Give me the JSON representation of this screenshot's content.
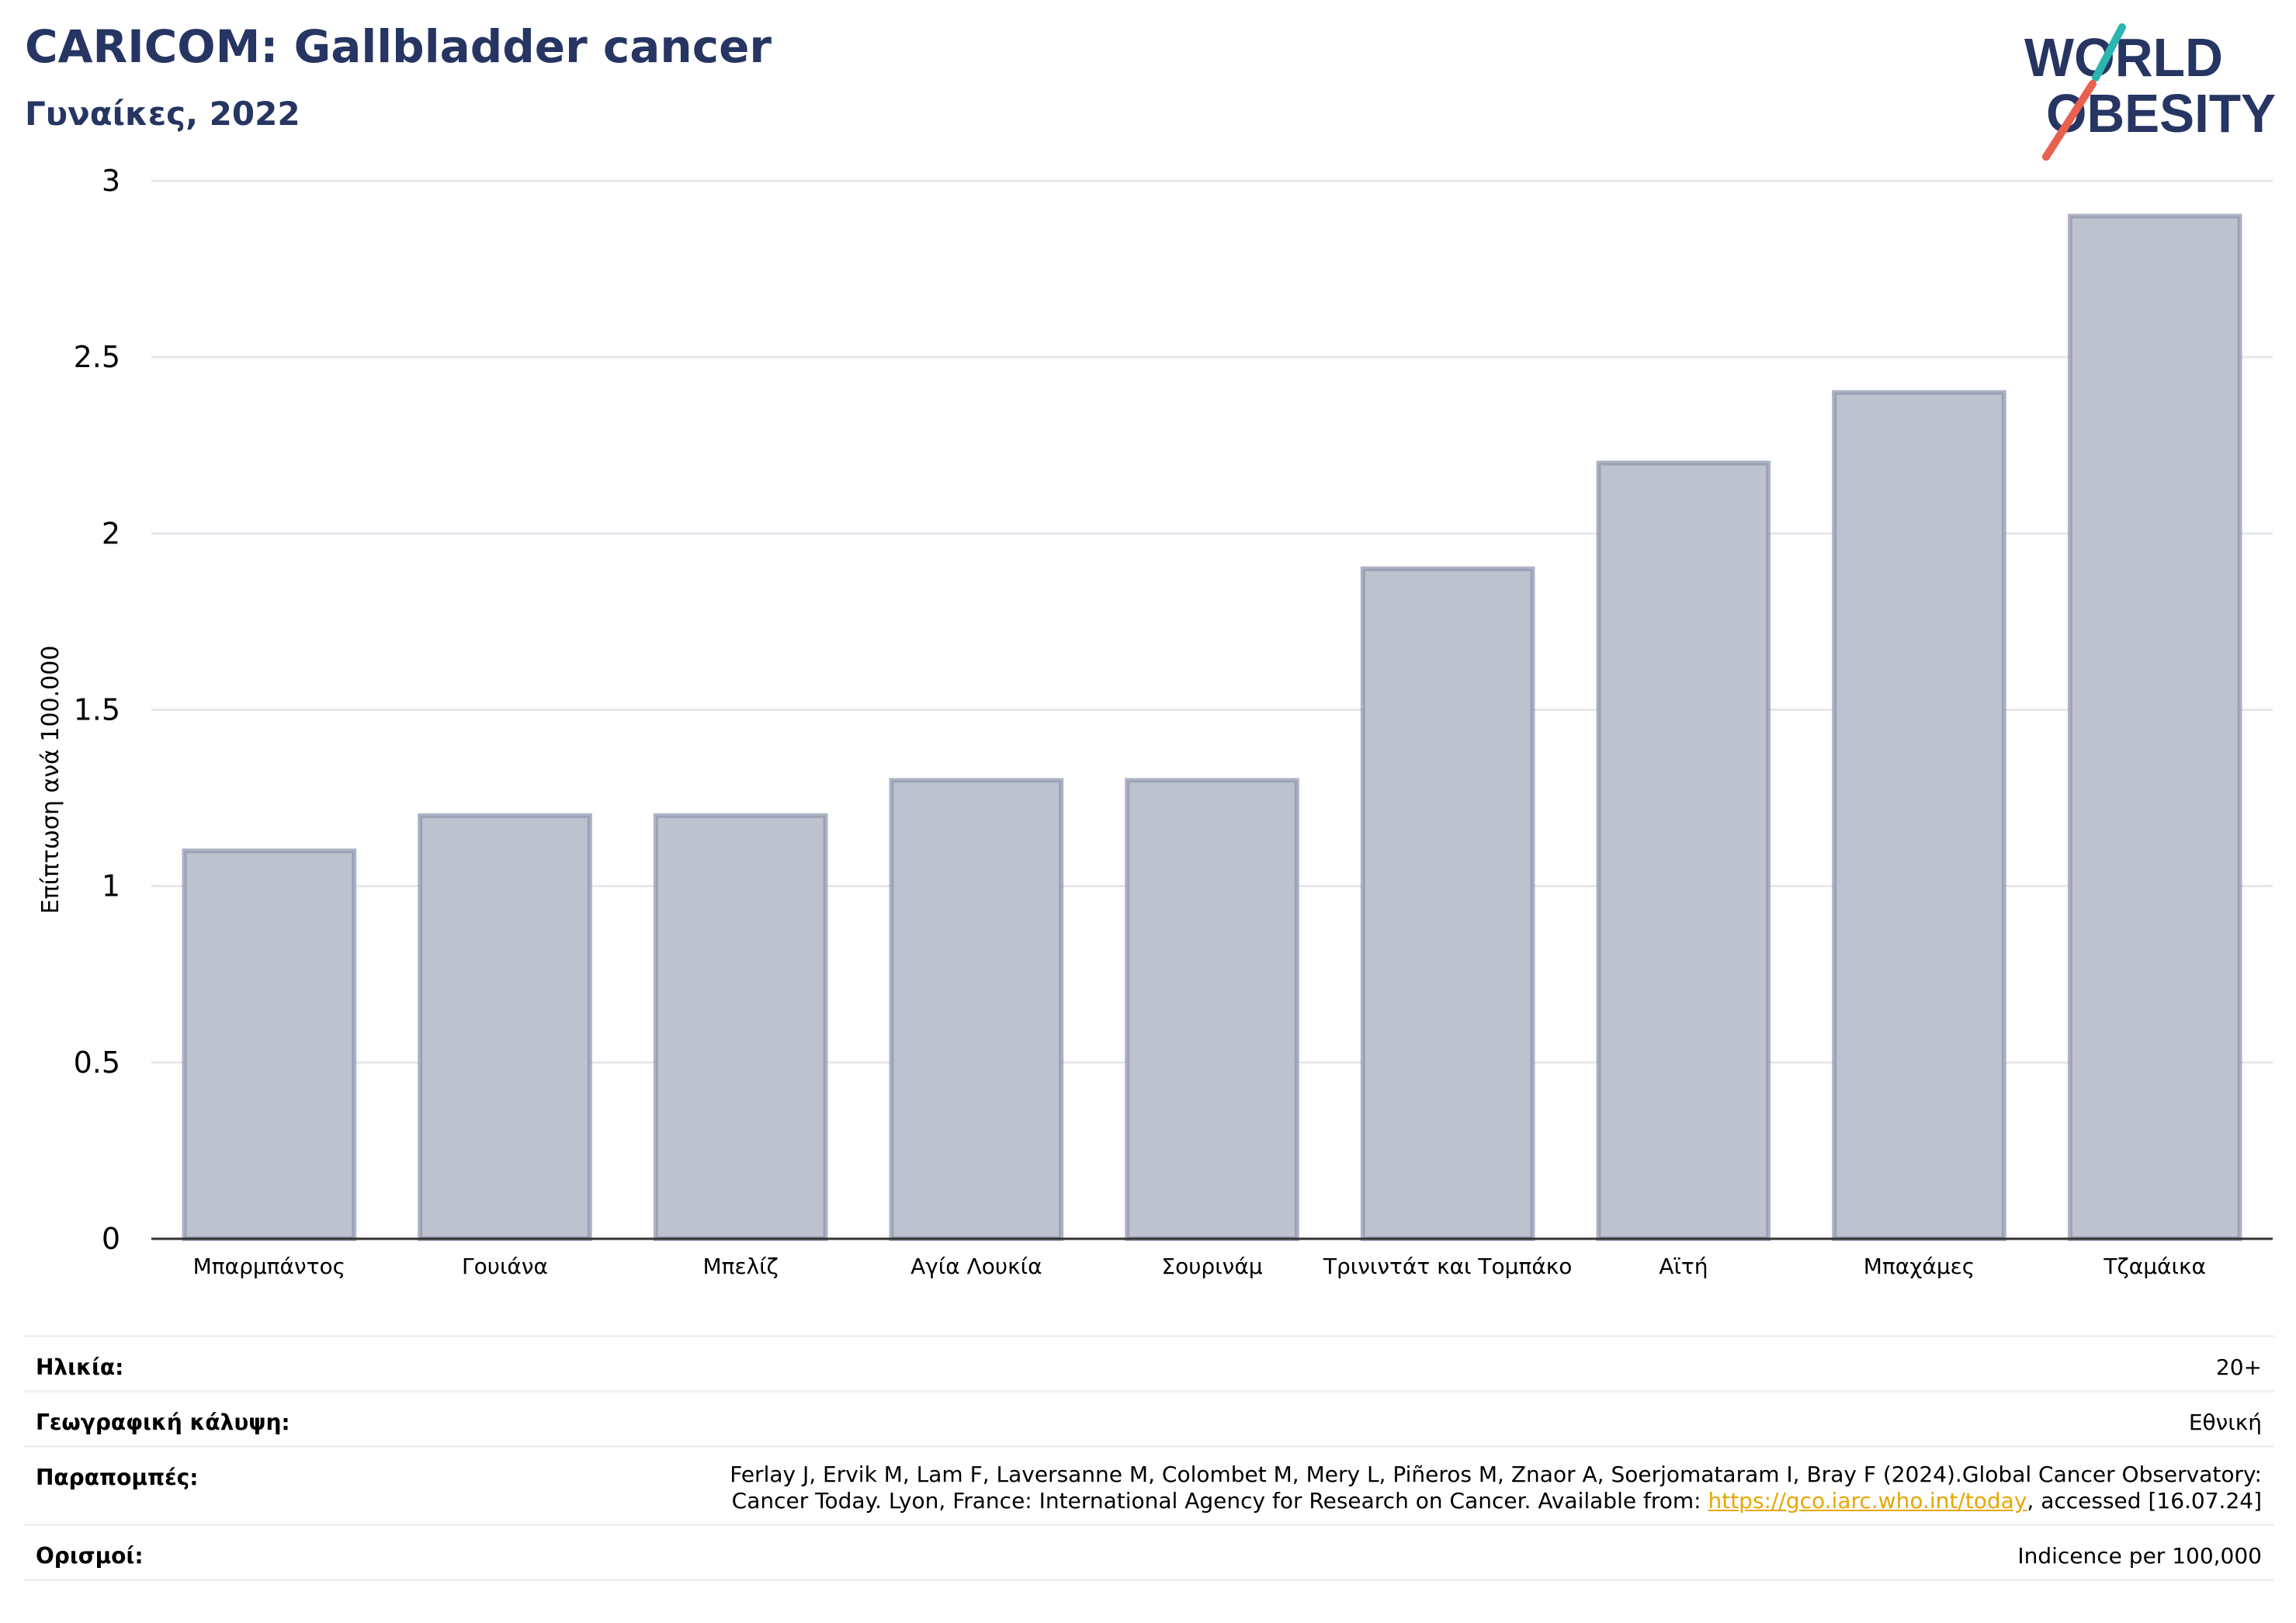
{
  "header": {
    "title": "CARICOM: Gallbladder cancer",
    "subtitle": "Γυναίκες, 2022"
  },
  "logo": {
    "line1": "WORLD",
    "line2": "OBESITY",
    "colors": {
      "text": "#263562",
      "slash_top": "#2bb5b0",
      "slash_bottom": "#e8614e"
    }
  },
  "chart_data": {
    "type": "bar",
    "categories": [
      "Μπαρμπάντος",
      "Γουιάνα",
      "Μπελίζ",
      "Αγία Λουκία",
      "Σουρινάμ",
      "Τρινιντάτ και Τομπάκο",
      "Αϊτή",
      "Μπαχάμες",
      "Τζαμάικα"
    ],
    "values": [
      1.1,
      1.2,
      1.2,
      1.3,
      1.3,
      1.9,
      2.2,
      2.4,
      2.9
    ],
    "ylabel": "Επίπτωση ανά 100.000",
    "ylim": [
      0,
      3
    ],
    "yticks": [
      0,
      0.5,
      1,
      1.5,
      2,
      2.5,
      3
    ],
    "grid": true,
    "colors": {
      "bar_fill": "#bec2ce",
      "bar_stroke": "#8b93ad",
      "axis": "#333333",
      "grid": "#e6e8ee"
    }
  },
  "meta": {
    "age_label": "Ηλικία:",
    "age_value": "20+",
    "coverage_label": "Γεωγραφική κάλυψη:",
    "coverage_value": "Εθνική",
    "refs_label": "Παραπομπές:",
    "refs_line1": "Ferlay J, Ervik M, Lam F, Laversanne M, Colombet M, Mery L, Piñeros M, Znaor A, Soerjomataram I, Bray F (2024).Global Cancer Observatory:",
    "refs_line2_pre": "Cancer Today. Lyon, France: International Agency for Research on Cancer. Available from: ",
    "refs_link": "https://gco.iarc.who.int/today",
    "refs_line2_post": ", accessed [16.07.24]",
    "defs_label": "Ορισμοί:",
    "defs_value": "Indicence per 100,000"
  }
}
